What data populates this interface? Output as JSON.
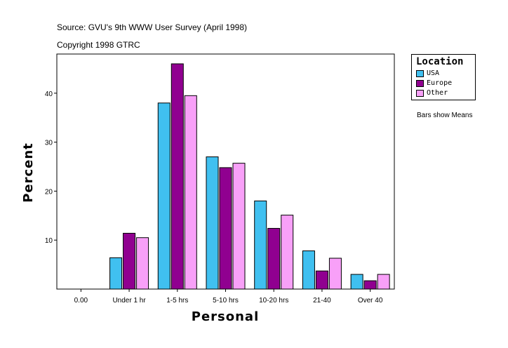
{
  "header": {
    "source": "Source: GVU's 9th WWW User Survey (April 1998)",
    "copyright": "Copyright 1998 GTRC"
  },
  "note": "Bars show Means",
  "chart_data": {
    "type": "bar",
    "title": "",
    "xlabel": "Personal",
    "ylabel": "Percent",
    "categories": [
      "0.00",
      "Under 1 hr",
      "1-5 hrs",
      "5-10 hrs",
      "10-20 hrs",
      "21-40",
      "Over 40"
    ],
    "ylim": [
      0,
      48
    ],
    "yticks": [
      10,
      20,
      30,
      40
    ],
    "legend_title": "Location",
    "legend_position": "top-right",
    "grid": false,
    "series": [
      {
        "name": "USA",
        "color": "#40c0f0",
        "values": [
          0,
          6.4,
          38.0,
          27.0,
          18.0,
          7.8,
          3.0
        ]
      },
      {
        "name": "Europe",
        "color": "#900090",
        "values": [
          0,
          11.4,
          46.0,
          24.8,
          12.4,
          3.7,
          1.7
        ]
      },
      {
        "name": "Other",
        "color": "#f8a0f8",
        "values": [
          0,
          10.5,
          39.5,
          25.7,
          15.1,
          6.3,
          3.0
        ]
      }
    ]
  }
}
